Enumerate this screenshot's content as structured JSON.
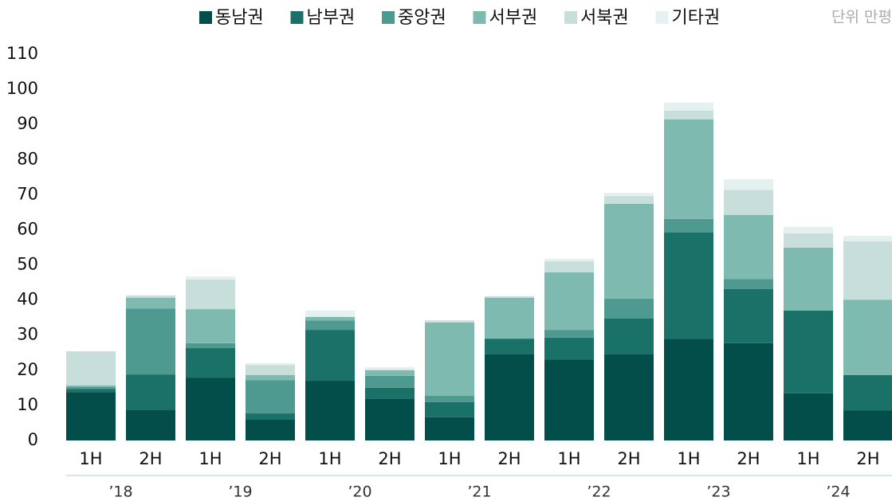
{
  "chart_data": {
    "type": "stacked_bar",
    "unit": "단위 만평",
    "categories": [
      "1H",
      "2H",
      "1H",
      "2H",
      "1H",
      "2H",
      "1H",
      "2H",
      "1H",
      "2H",
      "1H",
      "2H",
      "1H",
      "2H"
    ],
    "groups": [
      "’18",
      "’19",
      "’20",
      "’21",
      "’22",
      "’23",
      "’24"
    ],
    "series": [
      {
        "name": "동남권",
        "color": "#034e4b",
        "values": [
          13.8,
          8.8,
          17.9,
          5.9,
          17.0,
          11.8,
          6.6,
          24.5,
          23.1,
          24.5,
          29.0,
          27.7,
          13.4,
          8.6
        ]
      },
      {
        "name": "남부권",
        "color": "#1a7168",
        "values": [
          0.9,
          10.0,
          8.4,
          1.8,
          14.5,
          3.2,
          4.3,
          4.5,
          6.2,
          10.2,
          30.2,
          15.4,
          23.6,
          10.0
        ]
      },
      {
        "name": "중앙권",
        "color": "#4e9a91",
        "values": [
          0.5,
          18.8,
          1.4,
          9.5,
          2.7,
          3.4,
          1.8,
          0,
          2.2,
          5.7,
          3.9,
          2.9,
          0,
          0
        ]
      },
      {
        "name": "서부권",
        "color": "#7fbab0",
        "values": [
          0.5,
          3.0,
          9.7,
          1.4,
          1.0,
          1.6,
          20.9,
          11.6,
          16.4,
          27.0,
          28.3,
          18.2,
          17.9,
          21.5
        ]
      },
      {
        "name": "서북권",
        "color": "#c8dedb",
        "values": [
          9.7,
          0.7,
          8.4,
          2.9,
          0,
          0.2,
          0.6,
          0.5,
          3.1,
          2.2,
          2.5,
          7.2,
          4.1,
          16.6
        ]
      },
      {
        "name": "기타권",
        "color": "#e5f0f0",
        "values": [
          0,
          0,
          0.9,
          0.5,
          1.8,
          0.7,
          0,
          0,
          0.7,
          0.9,
          2.3,
          3.0,
          1.8,
          1.6
        ]
      }
    ],
    "ylim": [
      0,
      110
    ],
    "yticks": [
      0,
      10,
      20,
      30,
      40,
      50,
      60,
      70,
      80,
      90,
      100,
      110
    ]
  }
}
